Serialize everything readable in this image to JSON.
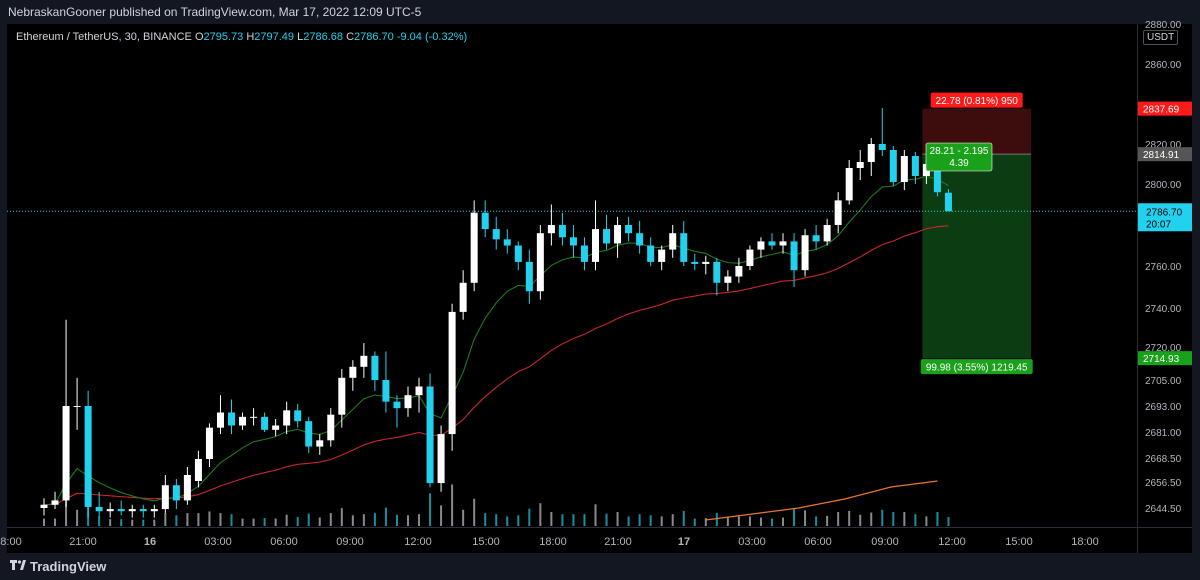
{
  "header": {
    "published": "NebraskanGooner published on TradingView.com, Mar 17, 2022 12:09 UTC-5"
  },
  "legend": {
    "symbol": "Ethereum / TetherUS, 30, BINANCE",
    "o_label": "O",
    "o": "2795.73",
    "h_label": "H",
    "h": "2797.49",
    "l_label": "L",
    "l": "2786.68",
    "c_label": "C",
    "c": "2786.70",
    "change": "-9.04 (-0.32%)"
  },
  "price_axis": {
    "unit": "USDT"
  },
  "footer": {
    "brand": "TradingView"
  },
  "colors": {
    "background": "#000000",
    "up": "#ffffff",
    "down": "#22d1ee",
    "ema_fast": "#1f7a1f",
    "ema_slow": "#c62828",
    "volume_ma": "#e8782a",
    "target_zone": "#0c3d12",
    "stop_zone": "#3d0c0c",
    "target_label": "#1aa11a",
    "stop_label": "#ff1a1a",
    "last_price": "#22d1ee"
  },
  "chart_data": {
    "type": "candlestick",
    "interval": "30",
    "x_tick_labels": [
      "8:00",
      "21:00",
      "16",
      "03:00",
      "06:00",
      "09:00",
      "12:00",
      "15:00",
      "18:00",
      "21:00",
      "17",
      "03:00",
      "06:00",
      "09:00",
      "12:00",
      "15:00",
      "18:00"
    ],
    "y_tick_labels": [
      "2880.00",
      "2860.00",
      "2820.00",
      "2800.00",
      "2760.00",
      "2740.00",
      "2720.00",
      "2705.00",
      "2693.00",
      "2681.00",
      "2668.50",
      "2656.50",
      "2644.50"
    ],
    "price_badges": {
      "stop": "2837.69",
      "entry": "2814.91",
      "last": "2786.70",
      "countdown": "20:07",
      "target": "2714.93"
    },
    "position": {
      "stop_label": "22.78 (0.81%) 950",
      "entry_label_1": "28.21 - 2.195",
      "entry_label_2": "4.39",
      "target_label": "99.98 (3.55%) 1219.45"
    },
    "candles": [
      {
        "t": "20:00",
        "o": 2644.5,
        "h": 2649,
        "l": 2641,
        "c": 2646
      },
      {
        "t": "20:30",
        "o": 2646,
        "h": 2652,
        "l": 2644,
        "c": 2648
      },
      {
        "t": "21:00",
        "o": 2648,
        "h": 2734,
        "l": 2645,
        "c": 2693
      },
      {
        "t": "21:30",
        "o": 2693,
        "h": 2706,
        "l": 2682,
        "c": 2693
      },
      {
        "t": "22:00",
        "o": 2693,
        "h": 2700,
        "l": 2640,
        "c": 2645
      },
      {
        "t": "22:30",
        "o": 2645,
        "h": 2652,
        "l": 2640,
        "c": 2643
      },
      {
        "t": "23:00",
        "o": 2643,
        "h": 2647,
        "l": 2640,
        "c": 2644
      },
      {
        "t": "23:30",
        "o": 2644,
        "h": 2648,
        "l": 2641,
        "c": 2643
      },
      {
        "t": "00:00",
        "o": 2643,
        "h": 2646,
        "l": 2640,
        "c": 2644
      },
      {
        "t": "00:30",
        "o": 2644,
        "h": 2646,
        "l": 2640,
        "c": 2643
      },
      {
        "t": "01:00",
        "o": 2643,
        "h": 2646,
        "l": 2640,
        "c": 2644
      },
      {
        "t": "01:30",
        "o": 2644,
        "h": 2660,
        "l": 2642,
        "c": 2655
      },
      {
        "t": "02:00",
        "o": 2655,
        "h": 2658,
        "l": 2644,
        "c": 2648
      },
      {
        "t": "02:30",
        "o": 2648,
        "h": 2664,
        "l": 2646,
        "c": 2660
      },
      {
        "t": "03:00",
        "o": 2657,
        "h": 2672,
        "l": 2654,
        "c": 2668
      },
      {
        "t": "03:30",
        "o": 2668,
        "h": 2685,
        "l": 2664,
        "c": 2683
      },
      {
        "t": "04:00",
        "o": 2683,
        "h": 2698,
        "l": 2680,
        "c": 2690
      },
      {
        "t": "04:30",
        "o": 2690,
        "h": 2696,
        "l": 2680,
        "c": 2684
      },
      {
        "t": "05:00",
        "o": 2684,
        "h": 2690,
        "l": 2682,
        "c": 2688
      },
      {
        "t": "05:30",
        "o": 2688,
        "h": 2692,
        "l": 2684,
        "c": 2688
      },
      {
        "t": "06:00",
        "o": 2688,
        "h": 2690,
        "l": 2681,
        "c": 2682
      },
      {
        "t": "06:30",
        "o": 2682,
        "h": 2687,
        "l": 2679,
        "c": 2684
      },
      {
        "t": "07:00",
        "o": 2684,
        "h": 2695,
        "l": 2680,
        "c": 2691
      },
      {
        "t": "07:30",
        "o": 2691,
        "h": 2694,
        "l": 2683,
        "c": 2686
      },
      {
        "t": "08:00",
        "o": 2686,
        "h": 2688,
        "l": 2671,
        "c": 2674
      },
      {
        "t": "08:30",
        "o": 2674,
        "h": 2680,
        "l": 2670,
        "c": 2677
      },
      {
        "t": "09:00",
        "o": 2677,
        "h": 2692,
        "l": 2674,
        "c": 2689
      },
      {
        "t": "09:30",
        "o": 2689,
        "h": 2710,
        "l": 2683,
        "c": 2706
      },
      {
        "t": "10:00",
        "o": 2706,
        "h": 2714,
        "l": 2700,
        "c": 2711
      },
      {
        "t": "10:30",
        "o": 2711,
        "h": 2722,
        "l": 2706,
        "c": 2716
      },
      {
        "t": "11:00",
        "o": 2716,
        "h": 2718,
        "l": 2700,
        "c": 2705
      },
      {
        "t": "11:30",
        "o": 2705,
        "h": 2718,
        "l": 2690,
        "c": 2695
      },
      {
        "t": "12:00",
        "o": 2695,
        "h": 2698,
        "l": 2683,
        "c": 2692
      },
      {
        "t": "12:30",
        "o": 2692,
        "h": 2702,
        "l": 2688,
        "c": 2698
      },
      {
        "t": "13:00",
        "o": 2698,
        "h": 2706,
        "l": 2690,
        "c": 2702
      },
      {
        "t": "13:30",
        "o": 2702,
        "h": 2708,
        "l": 2654,
        "c": 2656
      },
      {
        "t": "14:00",
        "o": 2656,
        "h": 2684,
        "l": 2652,
        "c": 2680
      },
      {
        "t": "14:30",
        "o": 2680,
        "h": 2742,
        "l": 2672,
        "c": 2738
      },
      {
        "t": "15:00",
        "o": 2738,
        "h": 2758,
        "l": 2734,
        "c": 2752
      },
      {
        "t": "15:30",
        "o": 2752,
        "h": 2792,
        "l": 2748,
        "c": 2786
      },
      {
        "t": "16:00",
        "o": 2786,
        "h": 2792,
        "l": 2774,
        "c": 2778
      },
      {
        "t": "16:30",
        "o": 2778,
        "h": 2784,
        "l": 2768,
        "c": 2773
      },
      {
        "t": "17:00",
        "o": 2773,
        "h": 2778,
        "l": 2766,
        "c": 2770
      },
      {
        "t": "17:30",
        "o": 2770,
        "h": 2772,
        "l": 2758,
        "c": 2762
      },
      {
        "t": "18:00",
        "o": 2762,
        "h": 2768,
        "l": 2742,
        "c": 2748
      },
      {
        "t": "18:30",
        "o": 2748,
        "h": 2780,
        "l": 2744,
        "c": 2776
      },
      {
        "t": "19:00",
        "o": 2776,
        "h": 2790,
        "l": 2770,
        "c": 2780
      },
      {
        "t": "19:30",
        "o": 2780,
        "h": 2786,
        "l": 2770,
        "c": 2774
      },
      {
        "t": "20:00",
        "o": 2774,
        "h": 2780,
        "l": 2764,
        "c": 2770
      },
      {
        "t": "20:30",
        "o": 2770,
        "h": 2774,
        "l": 2758,
        "c": 2762
      },
      {
        "t": "21:00",
        "o": 2762,
        "h": 2792,
        "l": 2758,
        "c": 2778
      },
      {
        "t": "21:30",
        "o": 2778,
        "h": 2785,
        "l": 2768,
        "c": 2771
      },
      {
        "t": "22:00",
        "o": 2771,
        "h": 2784,
        "l": 2764,
        "c": 2780
      },
      {
        "t": "22:30",
        "o": 2780,
        "h": 2784,
        "l": 2772,
        "c": 2776
      },
      {
        "t": "23:00",
        "o": 2776,
        "h": 2782,
        "l": 2766,
        "c": 2770
      },
      {
        "t": "23:30",
        "o": 2770,
        "h": 2774,
        "l": 2760,
        "c": 2762
      },
      {
        "t": "00:00",
        "o": 2762,
        "h": 2770,
        "l": 2758,
        "c": 2768
      },
      {
        "t": "00:30",
        "o": 2768,
        "h": 2780,
        "l": 2764,
        "c": 2776
      },
      {
        "t": "01:00",
        "o": 2776,
        "h": 2782,
        "l": 2760,
        "c": 2762
      },
      {
        "t": "01:30",
        "o": 2762,
        "h": 2766,
        "l": 2758,
        "c": 2761
      },
      {
        "t": "02:00",
        "o": 2761,
        "h": 2765,
        "l": 2756,
        "c": 2762
      },
      {
        "t": "02:30",
        "o": 2762,
        "h": 2764,
        "l": 2746,
        "c": 2752
      },
      {
        "t": "03:00",
        "o": 2752,
        "h": 2758,
        "l": 2748,
        "c": 2755
      },
      {
        "t": "03:30",
        "o": 2755,
        "h": 2764,
        "l": 2752,
        "c": 2760
      },
      {
        "t": "04:00",
        "o": 2760,
        "h": 2770,
        "l": 2758,
        "c": 2768
      },
      {
        "t": "04:30",
        "o": 2768,
        "h": 2774,
        "l": 2764,
        "c": 2772
      },
      {
        "t": "05:00",
        "o": 2772,
        "h": 2776,
        "l": 2768,
        "c": 2770
      },
      {
        "t": "05:30",
        "o": 2770,
        "h": 2776,
        "l": 2766,
        "c": 2772
      },
      {
        "t": "06:00",
        "o": 2772,
        "h": 2776,
        "l": 2750,
        "c": 2758
      },
      {
        "t": "06:30",
        "o": 2758,
        "h": 2778,
        "l": 2755,
        "c": 2775
      },
      {
        "t": "07:00",
        "o": 2775,
        "h": 2780,
        "l": 2768,
        "c": 2772
      },
      {
        "t": "07:30",
        "o": 2772,
        "h": 2783,
        "l": 2770,
        "c": 2780
      },
      {
        "t": "08:00",
        "o": 2780,
        "h": 2796,
        "l": 2776,
        "c": 2792
      },
      {
        "t": "08:30",
        "o": 2792,
        "h": 2812,
        "l": 2790,
        "c": 2808
      },
      {
        "t": "09:00",
        "o": 2808,
        "h": 2817,
        "l": 2802,
        "c": 2811
      },
      {
        "t": "09:30",
        "o": 2811,
        "h": 2823,
        "l": 2804,
        "c": 2820
      },
      {
        "t": "10:00",
        "o": 2820,
        "h": 2838,
        "l": 2814,
        "c": 2817
      },
      {
        "t": "10:30",
        "o": 2817,
        "h": 2819,
        "l": 2799,
        "c": 2801
      },
      {
        "t": "11:00",
        "o": 2801,
        "h": 2817,
        "l": 2797,
        "c": 2814
      },
      {
        "t": "11:30",
        "o": 2814,
        "h": 2816,
        "l": 2800,
        "c": 2804
      },
      {
        "t": "12:00",
        "o": 2804,
        "h": 2812,
        "l": 2800,
        "c": 2810
      },
      {
        "t": "12:30",
        "o": 2810,
        "h": 2814,
        "l": 2794,
        "c": 2796
      },
      {
        "t": "13:00",
        "o": 2795.73,
        "h": 2797.49,
        "l": 2786.68,
        "c": 2786.7
      }
    ],
    "volume_ma": [
      {
        "t": "00:30",
        "v": 2
      },
      {
        "t": "03:00",
        "v": 4
      },
      {
        "t": "06:00",
        "v": 6
      },
      {
        "t": "09:00",
        "v": 9
      },
      {
        "t": "12:00",
        "v": 13
      },
      {
        "t": "13:00",
        "v": 15
      }
    ]
  }
}
